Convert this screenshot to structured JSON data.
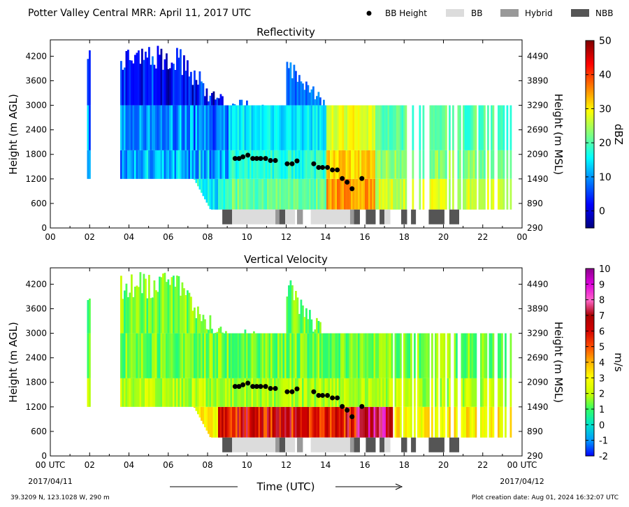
{
  "header": {
    "title": "Potter Valley Central MRR:  April 11, 2017 UTC",
    "legend": [
      {
        "label": "BB Height",
        "marker": "dot",
        "color": "#000000"
      },
      {
        "label": "BB",
        "marker": "box",
        "color": "#dcdcdc"
      },
      {
        "label": "Hybrid",
        "marker": "box",
        "color": "#999999"
      },
      {
        "label": "NBB",
        "marker": "box",
        "color": "#555555"
      }
    ]
  },
  "footer": {
    "location": "39.3209 N, 123.1028 W, 290 m",
    "creation": "Plot creation date: Aug 01, 2024 16:32:07 UTC",
    "xlabel": "Time (UTC)",
    "start_label": "00 UTC",
    "start_date": "2017/04/11",
    "end_label": "00 UTC",
    "end_date": "2017/04/12"
  },
  "chart_data": [
    {
      "type": "heatmap",
      "title": "Reflectivity",
      "ylabel": "Height (m AGL)",
      "y2label": "Height (m MSL)",
      "x_ticks": [
        "00",
        "02",
        "04",
        "06",
        "08",
        "10",
        "12",
        "14",
        "16",
        "18",
        "20",
        "22",
        "00"
      ],
      "y_ticks": [
        0,
        600,
        1200,
        1800,
        2400,
        3000,
        3600,
        4200
      ],
      "y2_ticks": [
        290,
        890,
        1490,
        2090,
        2690,
        3290,
        3890,
        4490
      ],
      "xlim": [
        0,
        24
      ],
      "ylim": [
        0,
        4600
      ],
      "colorbar": {
        "label": "dBZ",
        "range": [
          -5,
          50
        ],
        "ticks": [
          0,
          10,
          20,
          30,
          40,
          50
        ],
        "colors": [
          "#00007f",
          "#0000ff",
          "#007fff",
          "#00ffff",
          "#7fff7f",
          "#ffff00",
          "#ff7f00",
          "#ff0000",
          "#7f0000"
        ]
      }
    },
    {
      "type": "heatmap",
      "title": "Vertical Velocity",
      "ylabel": "Height (m AGL)",
      "y2label": "Height (m MSL)",
      "x_ticks": [
        "00 UTC",
        "02",
        "04",
        "06",
        "08",
        "10",
        "12",
        "14",
        "16",
        "18",
        "20",
        "22",
        "00 UTC"
      ],
      "y_ticks": [
        0,
        600,
        1200,
        1800,
        2400,
        3000,
        3600,
        4200
      ],
      "y2_ticks": [
        290,
        890,
        1490,
        2090,
        2690,
        3290,
        3890,
        4490
      ],
      "xlim": [
        0,
        24
      ],
      "ylim": [
        0,
        4600
      ],
      "colorbar": {
        "label": "m/s",
        "range": [
          -2,
          10
        ],
        "ticks": [
          -2,
          -1,
          0,
          1,
          2,
          3,
          4,
          5,
          6,
          7,
          8,
          9,
          10
        ],
        "colors": [
          "#0000ff",
          "#0096ff",
          "#00e6c8",
          "#32ff64",
          "#c8ff00",
          "#ffff00",
          "#ffb400",
          "#ff5000",
          "#d20000",
          "#aa0000",
          "#ff64c8",
          "#dc00dc",
          "#8c008c"
        ]
      }
    }
  ],
  "bb_height_points": {
    "x": [
      9.4,
      9.6,
      9.8,
      10.05,
      10.3,
      10.5,
      10.7,
      10.95,
      11.2,
      11.45,
      12.05,
      12.3,
      12.55,
      13.4,
      13.65,
      13.85,
      14.1,
      14.35,
      14.6,
      14.85,
      15.1,
      15.35,
      15.85
    ],
    "y": [
      1700,
      1700,
      1740,
      1780,
      1700,
      1700,
      1700,
      1700,
      1650,
      1650,
      1570,
      1570,
      1640,
      1570,
      1480,
      1480,
      1480,
      1420,
      1420,
      1210,
      1120,
      960,
      1210
    ]
  },
  "bb_type_segments": [
    {
      "type": "NBB",
      "start": 8.75,
      "end": 9.25
    },
    {
      "type": "BB",
      "start": 9.25,
      "end": 11.45
    },
    {
      "type": "Hybrid",
      "start": 11.45,
      "end": 11.65
    },
    {
      "type": "NBB",
      "start": 11.65,
      "end": 11.95
    },
    {
      "type": "BB",
      "start": 11.95,
      "end": 12.45
    },
    {
      "type": "Hybrid",
      "start": 12.55,
      "end": 12.85
    },
    {
      "type": "BB",
      "start": 13.25,
      "end": 15.25
    },
    {
      "type": "Hybrid",
      "start": 15.25,
      "end": 15.45
    },
    {
      "type": "NBB",
      "start": 15.45,
      "end": 15.75
    },
    {
      "type": "NBB",
      "start": 16.05,
      "end": 16.55
    },
    {
      "type": "NBB",
      "start": 16.75,
      "end": 17.0
    },
    {
      "type": "BB",
      "start": 17.0,
      "end": 17.3
    },
    {
      "type": "NBB",
      "start": 17.85,
      "end": 18.15
    },
    {
      "type": "NBB",
      "start": 18.35,
      "end": 18.6
    },
    {
      "type": "NBB",
      "start": 19.25,
      "end": 20.05
    },
    {
      "type": "NBB",
      "start": 20.3,
      "end": 20.8
    }
  ]
}
